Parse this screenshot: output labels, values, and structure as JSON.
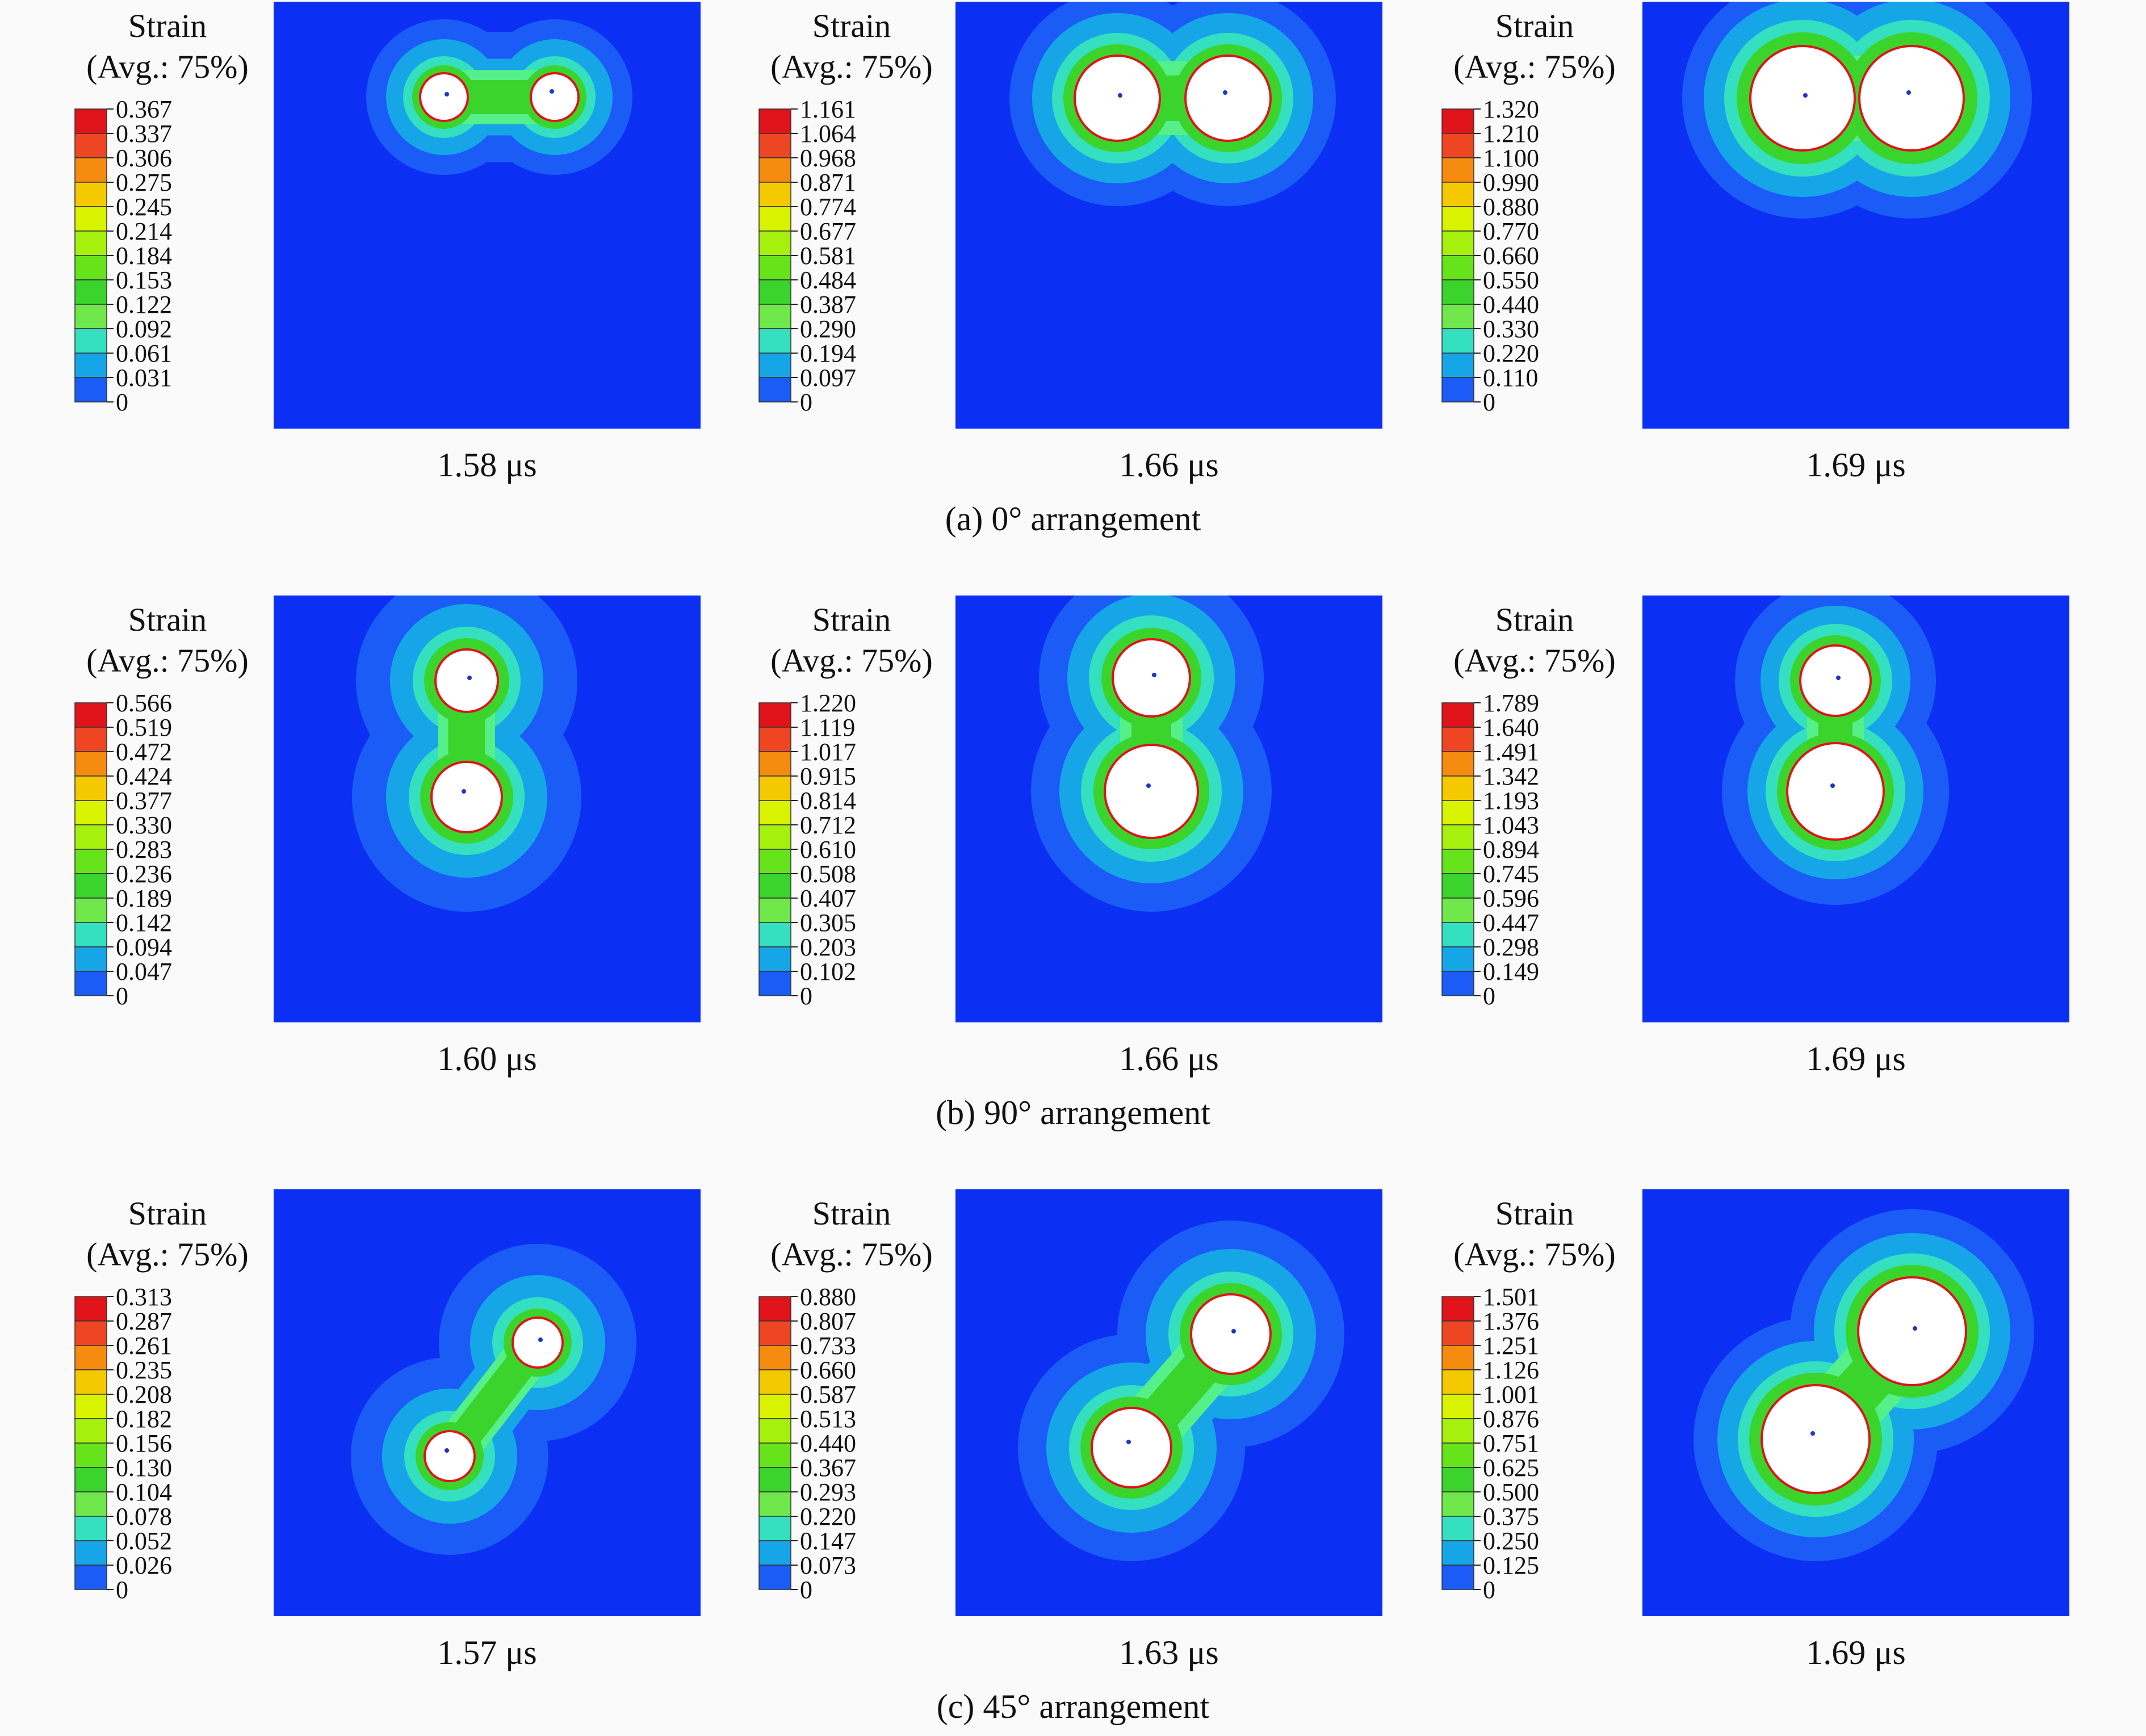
{
  "legend_title_line1": "Strain",
  "legend_title_line2": "(Avg.: 75%)",
  "colors": [
    "#0b2ff3",
    "#1a5cf5",
    "#16a6e8",
    "#35e0c0",
    "#55f08a",
    "#70e74b",
    "#3bd42c",
    "#66e31b",
    "#a6f00d",
    "#d9f200",
    "#f5c900",
    "#f58b0f",
    "#ee4622",
    "#e0121a"
  ],
  "rows": [
    {
      "caption": "(a) 0° arrangement",
      "panels": [
        {
          "time": "1.58 μs",
          "ticks": [
            "0.367",
            "0.337",
            "0.306",
            "0.275",
            "0.245",
            "0.214",
            "0.184",
            "0.153",
            "0.122",
            "0.092",
            "0.061",
            "0.031",
            "0"
          ]
        },
        {
          "time": "1.66 μs",
          "ticks": [
            "1.161",
            "1.064",
            "0.968",
            "0.871",
            "0.774",
            "0.677",
            "0.581",
            "0.484",
            "0.387",
            "0.290",
            "0.194",
            "0.097",
            "0"
          ]
        },
        {
          "time": "1.69 μs",
          "ticks": [
            "1.320",
            "1.210",
            "1.100",
            "0.990",
            "0.880",
            "0.770",
            "0.660",
            "0.550",
            "0.440",
            "0.330",
            "0.220",
            "0.110",
            "0"
          ]
        }
      ]
    },
    {
      "caption": "(b) 90° arrangement",
      "panels": [
        {
          "time": "1.60 μs",
          "ticks": [
            "0.566",
            "0.519",
            "0.472",
            "0.424",
            "0.377",
            "0.330",
            "0.283",
            "0.236",
            "0.189",
            "0.142",
            "0.094",
            "0.047",
            "0"
          ]
        },
        {
          "time": "1.66 μs",
          "ticks": [
            "1.220",
            "1.119",
            "1.017",
            "0.915",
            "0.814",
            "0.712",
            "0.610",
            "0.508",
            "0.407",
            "0.305",
            "0.203",
            "0.102",
            "0"
          ]
        },
        {
          "time": "1.69 μs",
          "ticks": [
            "1.789",
            "1.640",
            "1.491",
            "1.342",
            "1.193",
            "1.043",
            "0.894",
            "0.745",
            "0.596",
            "0.447",
            "0.298",
            "0.149",
            "0"
          ]
        }
      ]
    },
    {
      "caption": "(c) 45° arrangement",
      "panels": [
        {
          "time": "1.57 μs",
          "ticks": [
            "0.313",
            "0.287",
            "0.261",
            "0.235",
            "0.208",
            "0.182",
            "0.156",
            "0.130",
            "0.104",
            "0.078",
            "0.052",
            "0.026",
            "0"
          ]
        },
        {
          "time": "1.63 μs",
          "ticks": [
            "0.880",
            "0.807",
            "0.733",
            "0.660",
            "0.587",
            "0.513",
            "0.440",
            "0.367",
            "0.293",
            "0.220",
            "0.147",
            "0.073",
            "0"
          ]
        },
        {
          "time": "1.69 μs",
          "ticks": [
            "1.501",
            "1.376",
            "1.251",
            "1.126",
            "1.001",
            "0.876",
            "0.751",
            "0.625",
            "0.500",
            "0.375",
            "0.250",
            "0.125",
            "0"
          ]
        }
      ]
    }
  ]
}
